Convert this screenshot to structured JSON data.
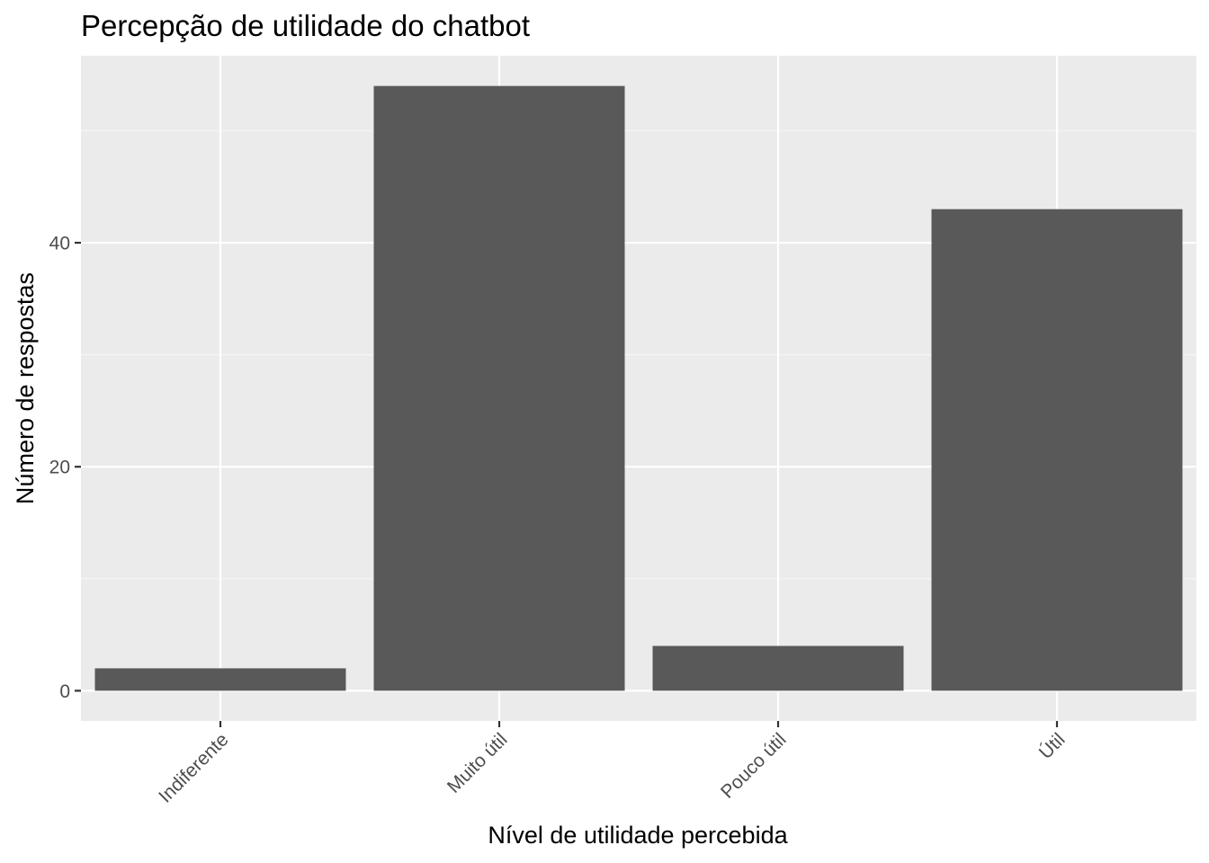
{
  "chart_data": {
    "type": "bar",
    "title": "Percepção de utilidade do chatbot",
    "xlabel": "Nível de utilidade percebida",
    "ylabel": "Número de respostas",
    "categories": [
      "Indiferente",
      "Muito útil",
      "Pouco útil",
      "Útil"
    ],
    "values": [
      2,
      54,
      4,
      43
    ],
    "ylim": [
      -2.7,
      56.7
    ],
    "yticks": [
      0,
      20,
      40
    ],
    "ytick_labels": [
      "0",
      "20",
      "40"
    ],
    "grid": true,
    "x_tick_rotation_deg": 45,
    "legend": "none"
  },
  "colors": {
    "bar": "#595959",
    "panel_background": "#ebebeb",
    "grid_major": "#ffffff",
    "grid_minor": "#f5f5f5",
    "tick_mark": "#333333",
    "tick_label": "#4d4d4d"
  }
}
